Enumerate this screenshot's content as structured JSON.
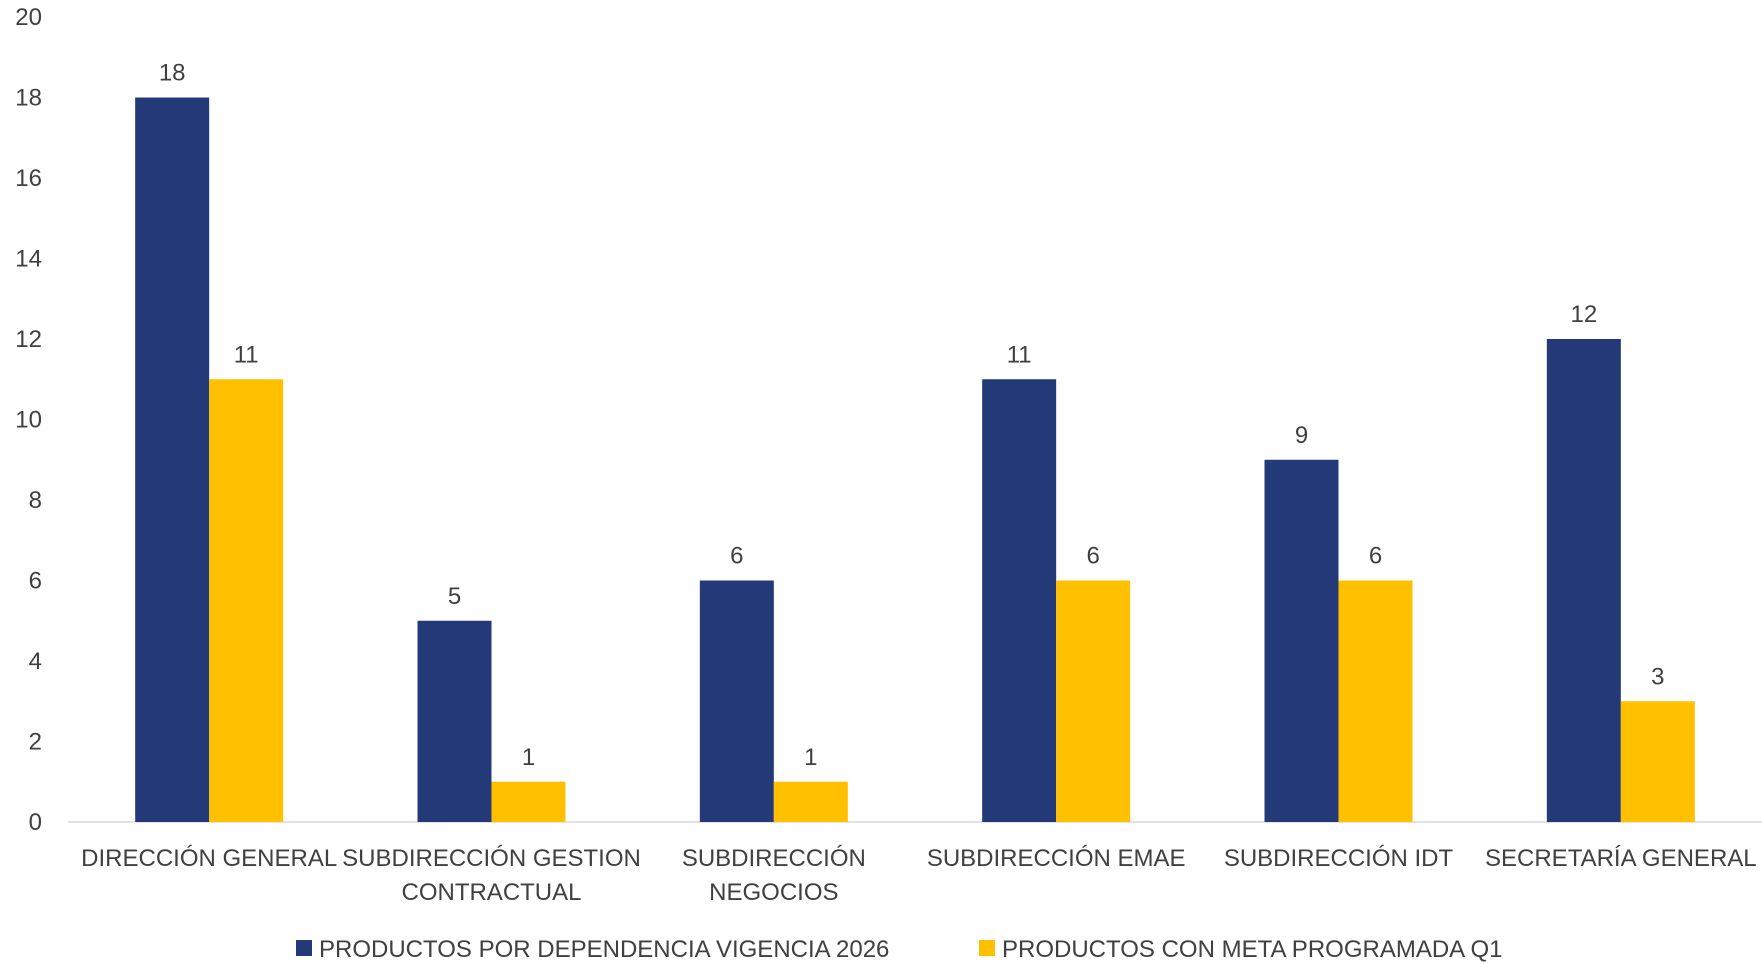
{
  "colors": {
    "series_1": "#243a78",
    "series_2": "#ffc000",
    "axis": "#d9d9d9",
    "text": "#404040"
  },
  "chart_data": {
    "type": "bar",
    "title": "",
    "xlabel": "",
    "ylabel": "",
    "ylim": [
      0,
      20
    ],
    "yticks": [
      0,
      2,
      4,
      6,
      8,
      10,
      12,
      14,
      16,
      18,
      20
    ],
    "grid": false,
    "legend_position": "bottom",
    "categories": [
      [
        "DIRECCIÓN GENERAL"
      ],
      [
        "SUBDIRECCIÓN GESTION",
        "CONTRACTUAL"
      ],
      [
        "SUBDIRECCIÓN",
        "NEGOCIOS"
      ],
      [
        "SUBDIRECCIÓN EMAE"
      ],
      [
        "SUBDIRECCIÓN IDT"
      ],
      [
        "SECRETARÍA GENERAL"
      ]
    ],
    "series": [
      {
        "name": "PRODUCTOS POR DEPENDENCIA VIGENCIA 2026",
        "values": [
          18,
          5,
          6,
          11,
          9,
          12
        ]
      },
      {
        "name": "PRODUCTOS CON META PROGRAMADA Q1",
        "values": [
          11,
          1,
          1,
          6,
          6,
          3
        ]
      }
    ]
  }
}
